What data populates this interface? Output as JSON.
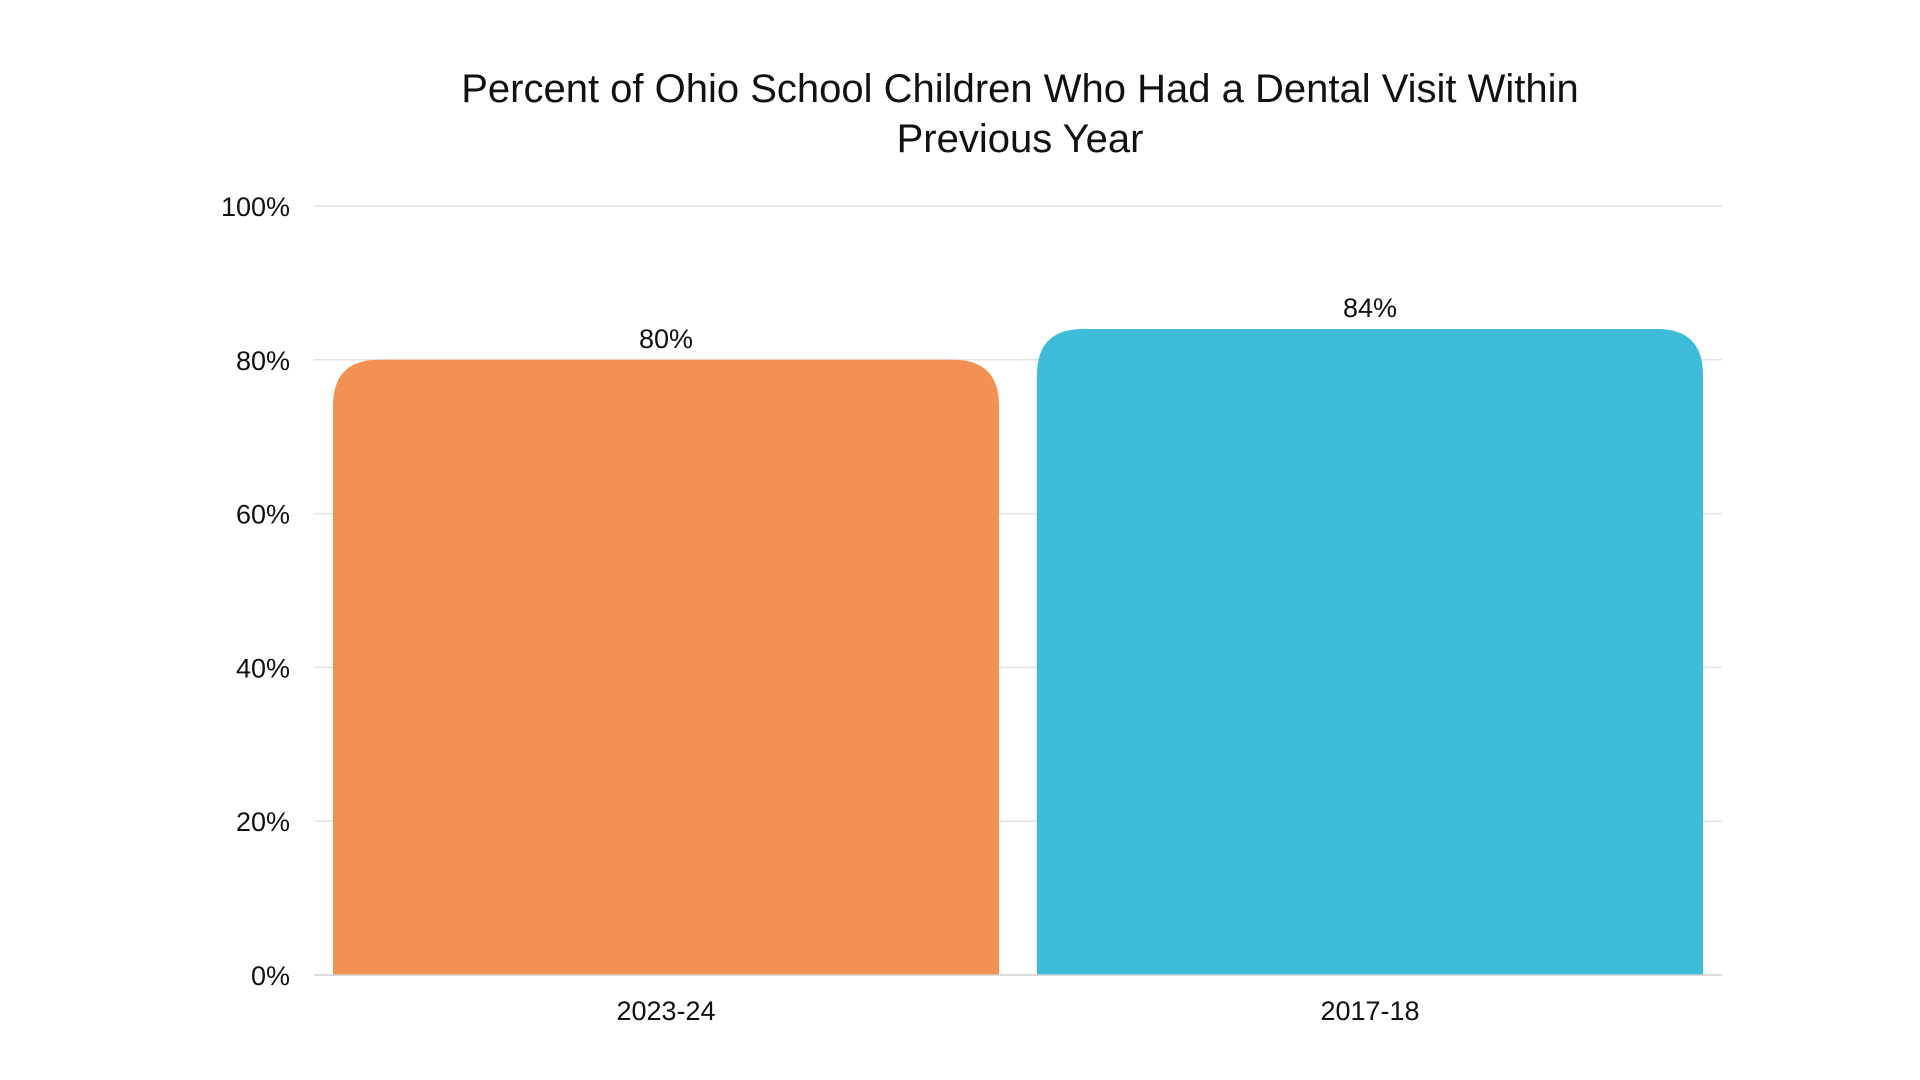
{
  "chart_data": {
    "type": "bar",
    "title_lines": [
      "Percent of Ohio School Children Who Had a Dental Visit Within",
      "Previous Year"
    ],
    "categories": [
      "2023-24",
      "2017-18"
    ],
    "values": [
      80,
      84
    ],
    "data_labels": [
      "80%",
      "84%"
    ],
    "bar_colors": [
      "#f39155",
      "#3dbcd9"
    ],
    "ylim": [
      0,
      100
    ],
    "yticks": [
      0,
      20,
      40,
      60,
      80,
      100
    ],
    "ytick_labels": [
      "0%",
      "20%",
      "40%",
      "60%",
      "80%",
      "100%"
    ],
    "xlabel": "",
    "ylabel": "",
    "grid": true,
    "legend": "none"
  }
}
